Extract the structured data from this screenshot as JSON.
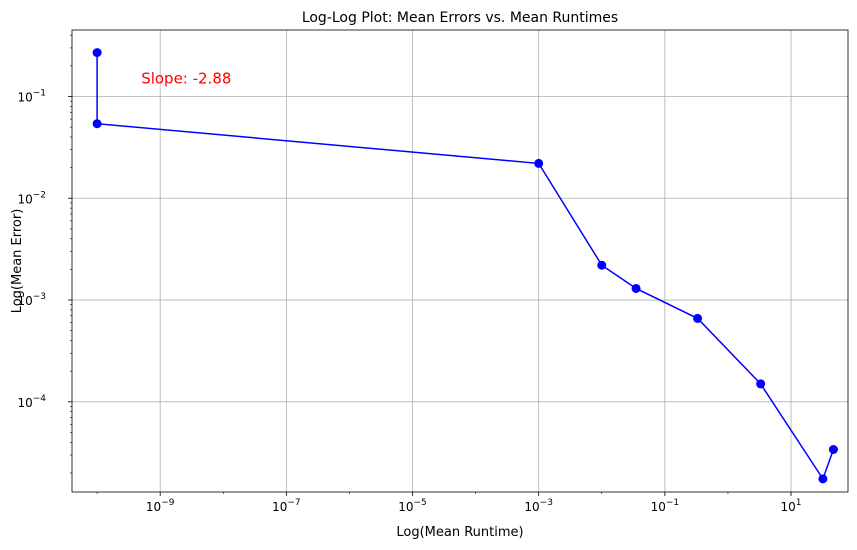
{
  "chart_data": {
    "type": "line",
    "title": "Log-Log Plot: Mean Errors vs. Mean Runtimes",
    "xlabel": "Log(Mean Runtime)",
    "ylabel": "Log(Mean Error)",
    "xscale": "log",
    "yscale": "log",
    "xlim": [
      4e-11,
      80
    ],
    "ylim": [
      1.3e-05,
      0.45
    ],
    "grid": true,
    "line_color": "#0000ff",
    "annotation": {
      "text": "Slope: -2.88",
      "color": "#ff0000",
      "x": 5e-10,
      "y": 0.15
    },
    "x_ticks": [
      {
        "value": 1e-09,
        "base": "10",
        "exp": "−9"
      },
      {
        "value": 1e-07,
        "base": "10",
        "exp": "−7"
      },
      {
        "value": 1e-05,
        "base": "10",
        "exp": "−5"
      },
      {
        "value": 0.001,
        "base": "10",
        "exp": "−3"
      },
      {
        "value": 0.1,
        "base": "10",
        "exp": "−1"
      },
      {
        "value": 10,
        "base": "10",
        "exp": "1"
      }
    ],
    "y_ticks": [
      {
        "value": 0.0001,
        "base": "10",
        "exp": "−4"
      },
      {
        "value": 0.001,
        "base": "10",
        "exp": "−3"
      },
      {
        "value": 0.01,
        "base": "10",
        "exp": "−2"
      },
      {
        "value": 0.1,
        "base": "10",
        "exp": "−1"
      }
    ],
    "series": [
      {
        "x": [
          1e-10,
          1e-10,
          0.001,
          0.01,
          0.035,
          0.33,
          3.3,
          32,
          47
        ],
        "y": [
          0.27,
          0.054,
          0.022,
          0.0022,
          0.0013,
          0.00066,
          0.00015,
          1.75e-05,
          3.4e-05
        ]
      }
    ]
  }
}
